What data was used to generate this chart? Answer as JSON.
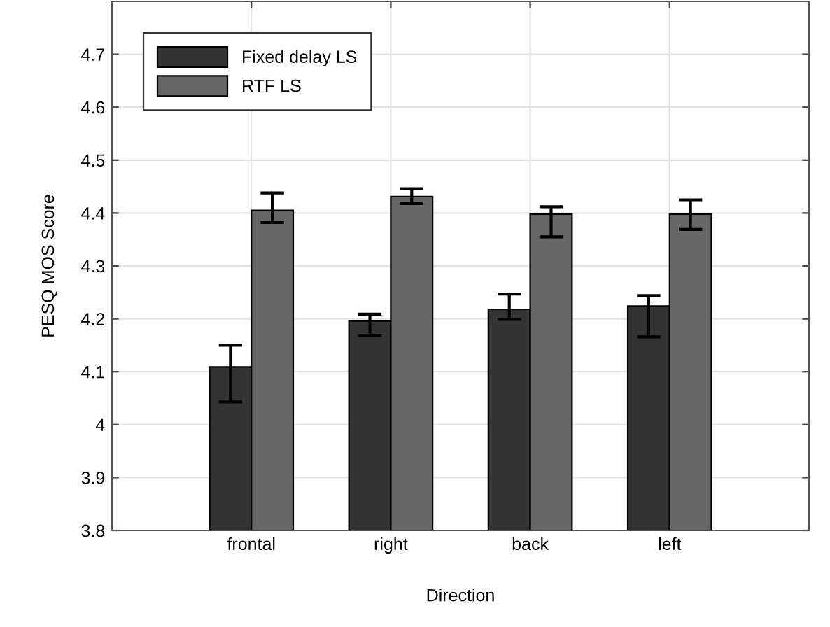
{
  "chart_data": {
    "type": "bar",
    "xlabel": "Direction",
    "ylabel": "PESQ MOS Score",
    "categories": [
      "frontal",
      "right",
      "back",
      "left"
    ],
    "series": [
      {
        "name": "Fixed delay LS",
        "color": "#333333",
        "values": [
          4.109,
          4.196,
          4.218,
          4.224
        ],
        "errors": [
          [
            4.043,
            4.15
          ],
          [
            4.169,
            4.209
          ],
          [
            4.199,
            4.247
          ],
          [
            4.166,
            4.244
          ]
        ]
      },
      {
        "name": "RTF LS",
        "color": "#676767",
        "values": [
          4.405,
          4.431,
          4.398,
          4.398
        ],
        "errors": [
          [
            4.382,
            4.438
          ],
          [
            4.418,
            4.446
          ],
          [
            4.355,
            4.412
          ],
          [
            4.369,
            4.425
          ]
        ]
      }
    ],
    "ylim": [
      3.8,
      4.8
    ],
    "yticks": [
      3.8,
      3.9,
      4,
      4.1,
      4.2,
      4.3,
      4.4,
      4.5,
      4.6,
      4.7
    ],
    "grid": true,
    "legend": "top left"
  }
}
